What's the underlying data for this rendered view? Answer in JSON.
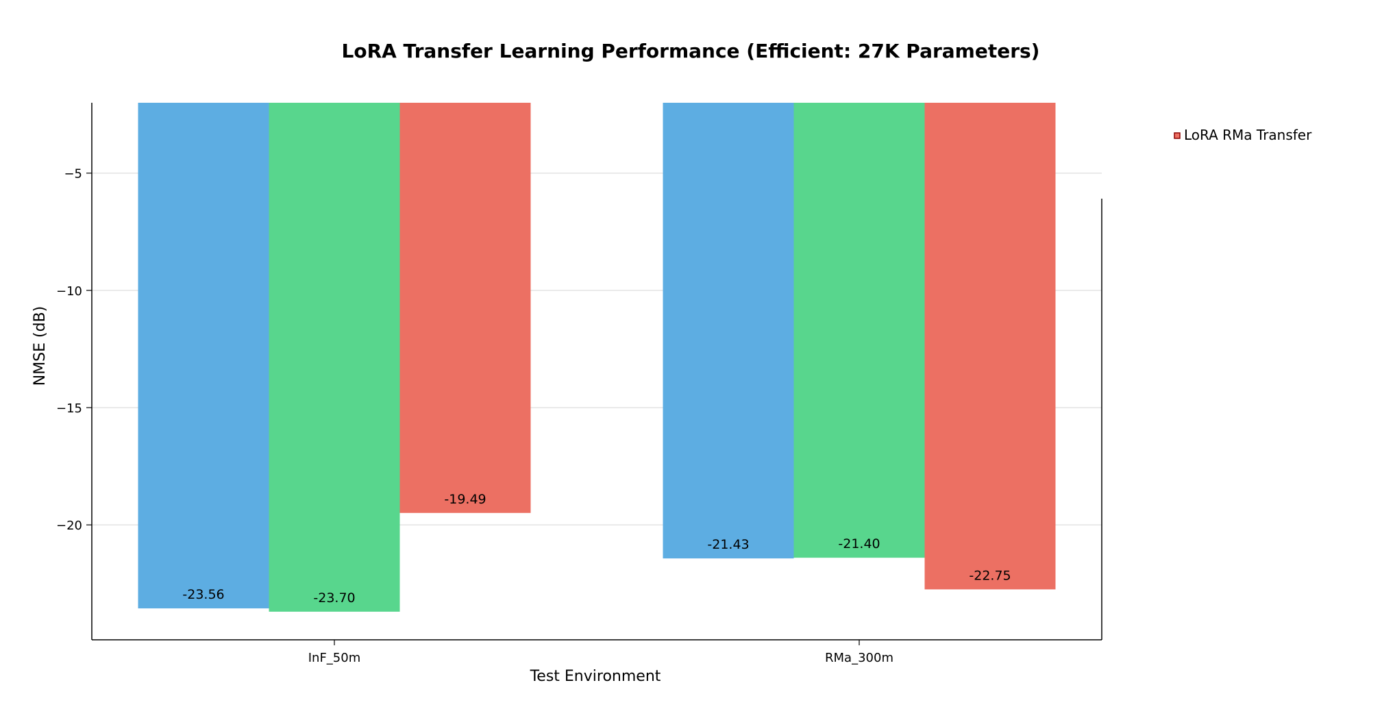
{
  "chart_data": {
    "type": "bar",
    "title": "LoRA Transfer Learning Performance (Efficient: 27K Parameters)",
    "xlabel": "Test Environment",
    "ylabel": "NMSE (dB)",
    "categories": [
      "InF_50m",
      "RMa_300m"
    ],
    "series": [
      {
        "values": [
          -23.56,
          -21.43
        ],
        "color": "#5dade2"
      },
      {
        "values": [
          -23.7,
          -21.4
        ],
        "color": "#58d68d"
      },
      {
        "name": "LoRA RMa Transfer",
        "values": [
          -19.49,
          -22.75
        ],
        "color": "#ec7063"
      }
    ],
    "data_labels": [
      [
        "-23.56",
        "-21.43"
      ],
      [
        "-23.70",
        "-21.40"
      ],
      [
        "-19.49",
        "-22.75"
      ]
    ],
    "ylim": [
      -24.9,
      -2.0
    ],
    "yticks": [
      -5,
      -10,
      -15,
      -20
    ],
    "ytick_labels": [
      "−5",
      "−10",
      "−15",
      "−20"
    ],
    "grid": "y",
    "legend_position": "upper-right-outside"
  }
}
